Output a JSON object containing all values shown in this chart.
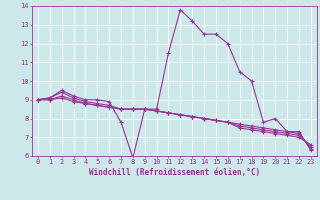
{
  "xlabel": "Windchill (Refroidissement éolien,°C)",
  "xlim": [
    -0.5,
    23.5
  ],
  "ylim": [
    6,
    14
  ],
  "yticks": [
    6,
    7,
    8,
    9,
    10,
    11,
    12,
    13,
    14
  ],
  "xticks": [
    0,
    1,
    2,
    3,
    4,
    5,
    6,
    7,
    8,
    9,
    10,
    11,
    12,
    13,
    14,
    15,
    16,
    17,
    18,
    19,
    20,
    21,
    22,
    23
  ],
  "background_color": "#cce8e8",
  "line_color": "#993399",
  "grid_color": "#ffffff",
  "series": [
    [
      9.0,
      9.1,
      9.5,
      9.2,
      9.0,
      9.0,
      8.9,
      7.8,
      5.9,
      8.5,
      8.5,
      11.5,
      13.8,
      13.2,
      12.5,
      12.5,
      12.0,
      10.5,
      10.0,
      7.8,
      8.0,
      7.3,
      7.3,
      6.3
    ],
    [
      9.0,
      9.1,
      9.4,
      9.1,
      8.9,
      8.8,
      8.7,
      8.5,
      8.5,
      8.5,
      8.4,
      8.3,
      8.2,
      8.1,
      8.0,
      7.9,
      7.8,
      7.7,
      7.6,
      7.5,
      7.4,
      7.3,
      7.2,
      6.4
    ],
    [
      9.0,
      9.0,
      9.2,
      9.0,
      8.8,
      8.7,
      8.6,
      8.5,
      8.5,
      8.5,
      8.4,
      8.3,
      8.2,
      8.1,
      8.0,
      7.9,
      7.8,
      7.6,
      7.5,
      7.4,
      7.3,
      7.2,
      7.1,
      6.5
    ],
    [
      9.0,
      9.0,
      9.1,
      8.9,
      8.8,
      8.7,
      8.6,
      8.5,
      8.5,
      8.5,
      8.4,
      8.3,
      8.2,
      8.1,
      8.0,
      7.9,
      7.8,
      7.5,
      7.4,
      7.3,
      7.2,
      7.1,
      7.0,
      6.6
    ]
  ],
  "figsize": [
    3.2,
    2.0
  ],
  "dpi": 100,
  "tick_fontsize": 5.0,
  "xlabel_fontsize": 5.5,
  "linewidth": 0.8,
  "markersize": 3.0,
  "markeredgewidth": 0.8
}
